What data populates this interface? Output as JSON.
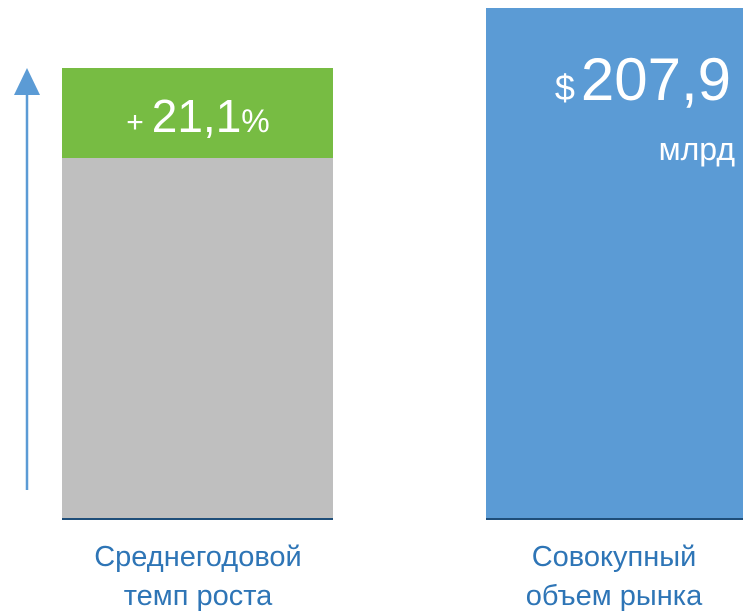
{
  "growth": {
    "sign": "+",
    "value": "21,1",
    "unit": "%",
    "label_lines": [
      "Среднегодовой",
      "темп роста"
    ]
  },
  "market": {
    "currency": "$",
    "value": "207,9",
    "unit": "млрд",
    "label_lines": [
      "Совокупный",
      "объем рынка"
    ]
  }
}
